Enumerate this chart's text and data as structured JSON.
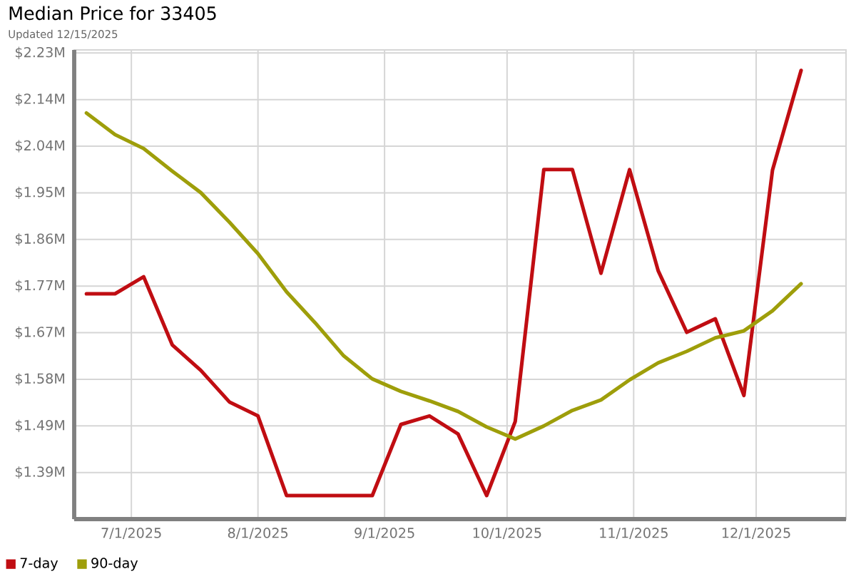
{
  "chart_data": {
    "type": "line",
    "title": "Median Price for 33405",
    "subtitle": "Updated 12/15/2025",
    "x": [
      "2025-06-20",
      "2025-06-27",
      "2025-07-04",
      "2025-07-11",
      "2025-07-18",
      "2025-07-25",
      "2025-08-01",
      "2025-08-08",
      "2025-08-15",
      "2025-08-22",
      "2025-08-29",
      "2025-09-05",
      "2025-09-12",
      "2025-09-19",
      "2025-09-26",
      "2025-10-03",
      "2025-10-10",
      "2025-10-17",
      "2025-10-24",
      "2025-10-31",
      "2025-11-07",
      "2025-11-14",
      "2025-11-21",
      "2025-11-28",
      "2025-12-05",
      "2025-12-12"
    ],
    "series": [
      {
        "name": "7-day",
        "color": "#c00d12",
        "values": [
          1.75,
          1.75,
          1.784,
          1.648,
          1.597,
          1.534,
          1.506,
          1.347,
          1.347,
          1.347,
          1.347,
          1.489,
          1.506,
          1.47,
          1.347,
          1.495,
          1.998,
          1.998,
          1.791,
          1.998,
          1.796,
          1.673,
          1.7,
          1.547,
          1.997,
          2.196
        ]
      },
      {
        "name": "90-day",
        "color": "#9e9e0a",
        "values": [
          2.111,
          2.068,
          2.04,
          1.995,
          1.952,
          1.893,
          1.83,
          1.754,
          1.692,
          1.626,
          1.58,
          1.555,
          1.536,
          1.515,
          1.484,
          1.46,
          1.486,
          1.517,
          1.538,
          1.578,
          1.612,
          1.635,
          1.662,
          1.676,
          1.716,
          1.77
        ]
      }
    ],
    "xlim": [
      "2025-06-17",
      "2025-12-23"
    ],
    "xticks": [
      {
        "value": "2025-07-01",
        "label": "7/1/2025"
      },
      {
        "value": "2025-08-01",
        "label": "8/1/2025"
      },
      {
        "value": "2025-09-01",
        "label": "9/1/2025"
      },
      {
        "value": "2025-10-01",
        "label": "10/1/2025"
      },
      {
        "value": "2025-11-01",
        "label": "11/1/2025"
      },
      {
        "value": "2025-12-01",
        "label": "12/1/2025"
      }
    ],
    "ylim": [
      1.3,
      2.237
    ],
    "yticks": [
      {
        "value": 1.393,
        "label": "$1.39M"
      },
      {
        "value": 1.4861,
        "label": "$1.49M"
      },
      {
        "value": 1.5792,
        "label": "$1.58M"
      },
      {
        "value": 1.6723,
        "label": "$1.67M"
      },
      {
        "value": 1.7654,
        "label": "$1.77M"
      },
      {
        "value": 1.8585,
        "label": "$1.86M"
      },
      {
        "value": 1.9516,
        "label": "$1.95M"
      },
      {
        "value": 2.0447,
        "label": "$2.04M"
      },
      {
        "value": 2.1378,
        "label": "$2.14M"
      },
      {
        "value": 2.2309,
        "label": "$2.23M"
      }
    ],
    "grid": true,
    "legend": "bottom left",
    "marker": "none",
    "line_style": "solid"
  }
}
